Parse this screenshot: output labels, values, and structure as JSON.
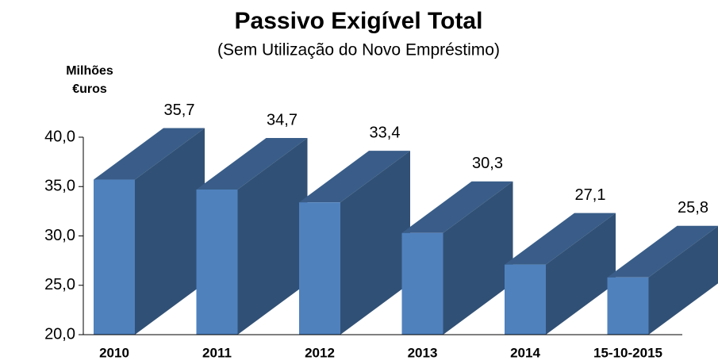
{
  "chart_data": {
    "type": "bar3d",
    "title": "Passivo  Exigível  Total",
    "subtitle": "(Sem Utilização do Novo Empréstimo)",
    "y_label": [
      "Milhões",
      "€uros"
    ],
    "categories": [
      "2010",
      "2011",
      "2012",
      "2013",
      "2014",
      "15-10-2015"
    ],
    "values": [
      35.7,
      34.7,
      33.4,
      30.3,
      27.1,
      25.8
    ],
    "value_labels": [
      "35,7",
      "34,7",
      "33,4",
      "30,3",
      "27,1",
      "25,8"
    ],
    "color": "#4f81bd",
    "ylim": [
      20,
      40
    ],
    "yticks": [
      {
        "value": 20,
        "label": "20,0"
      },
      {
        "value": 25,
        "label": "25,0"
      },
      {
        "value": 30,
        "label": "30,0"
      },
      {
        "value": 35,
        "label": "35,0"
      },
      {
        "value": 40,
        "label": "40,0"
      }
    ]
  }
}
